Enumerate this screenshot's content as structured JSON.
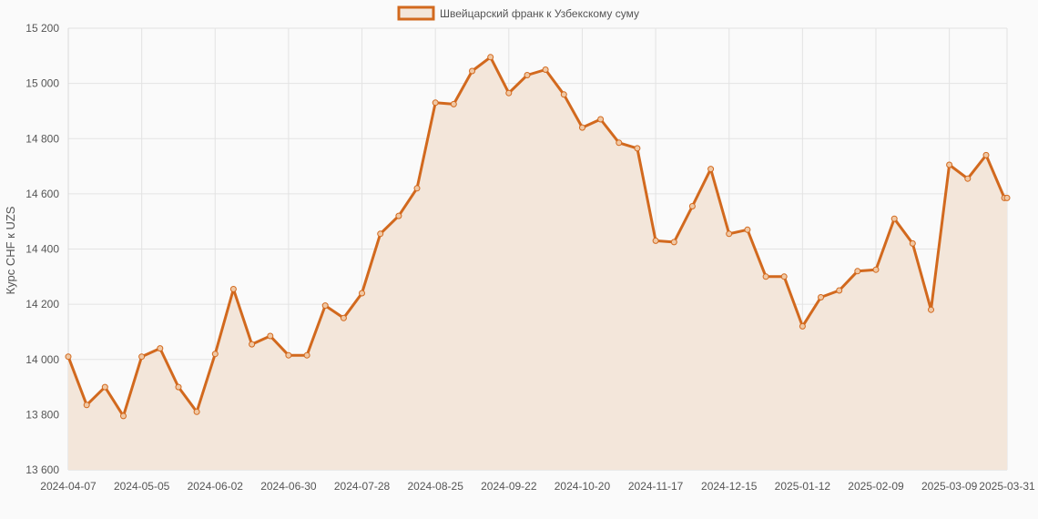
{
  "chart_data": {
    "type": "area",
    "legend": {
      "label": "Швейцарский франк к Узбекскому суму",
      "position": "top-center"
    },
    "ylabel": "Курс CHF к UZS",
    "xlabel": "",
    "ylim": [
      13600,
      15200
    ],
    "yticks": [
      13600,
      13800,
      14000,
      14200,
      14400,
      14600,
      14800,
      15000,
      15200
    ],
    "ytick_labels": [
      "13 600",
      "13 800",
      "14 000",
      "14 200",
      "14 400",
      "14 600",
      "14 800",
      "15 000",
      "15 200"
    ],
    "xlim": [
      "2024-04-07",
      "2025-03-31"
    ],
    "xticks": [
      "2024-04-07",
      "2024-05-05",
      "2024-06-02",
      "2024-06-30",
      "2024-07-28",
      "2024-08-25",
      "2024-09-22",
      "2024-10-20",
      "2024-11-17",
      "2024-12-15",
      "2025-01-12",
      "2025-02-09",
      "2025-03-09",
      "2025-03-31"
    ],
    "grid": true,
    "colors": {
      "line": "#d2691e",
      "fill": "#f3e6da",
      "grid": "#e3e3e3",
      "axis": "#d9d9d9"
    },
    "series": [
      {
        "name": "Швейцарский франк к Узбекскому суму",
        "x": [
          "2024-04-07",
          "2024-04-14",
          "2024-04-21",
          "2024-04-28",
          "2024-05-05",
          "2024-05-12",
          "2024-05-19",
          "2024-05-26",
          "2024-06-02",
          "2024-06-09",
          "2024-06-16",
          "2024-06-23",
          "2024-06-30",
          "2024-07-07",
          "2024-07-14",
          "2024-07-21",
          "2024-07-28",
          "2024-08-04",
          "2024-08-11",
          "2024-08-18",
          "2024-08-25",
          "2024-09-01",
          "2024-09-08",
          "2024-09-15",
          "2024-09-22",
          "2024-09-29",
          "2024-10-06",
          "2024-10-13",
          "2024-10-20",
          "2024-10-27",
          "2024-11-03",
          "2024-11-10",
          "2024-11-17",
          "2024-11-24",
          "2024-12-01",
          "2024-12-08",
          "2024-12-15",
          "2024-12-22",
          "2024-12-29",
          "2025-01-05",
          "2025-01-12",
          "2025-01-19",
          "2025-01-26",
          "2025-02-02",
          "2025-02-09",
          "2025-02-16",
          "2025-02-23",
          "2025-03-02",
          "2025-03-09",
          "2025-03-16",
          "2025-03-23",
          "2025-03-30",
          "2025-03-31"
        ],
        "y": [
          14010,
          13835,
          13900,
          13795,
          14010,
          14040,
          13900,
          13810,
          14020,
          14255,
          14055,
          14085,
          14015,
          14015,
          14195,
          14150,
          14240,
          14455,
          14520,
          14620,
          14930,
          14925,
          15045,
          15095,
          14965,
          15030,
          15050,
          14960,
          14840,
          14870,
          14785,
          14765,
          14430,
          14425,
          14555,
          14690,
          14455,
          14470,
          14300,
          14300,
          14120,
          14225,
          14250,
          14320,
          14325,
          14510,
          14420,
          14180,
          14705,
          14655,
          14740,
          14585,
          14585
        ]
      }
    ]
  }
}
